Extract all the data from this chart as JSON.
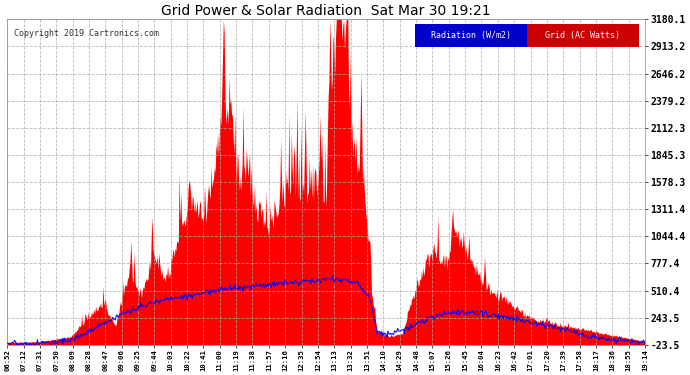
{
  "title": "Grid Power & Solar Radiation  Sat Mar 30 19:21",
  "copyright": "Copyright 2019 Cartronics.com",
  "legend": [
    {
      "label": "Radiation (W/m2)",
      "facecolor": "#0000cc",
      "textcolor": "#ffffff"
    },
    {
      "label": "Grid (AC Watts)",
      "facecolor": "#cc0000",
      "textcolor": "#ffffff"
    }
  ],
  "yticks": [
    -23.5,
    243.5,
    510.4,
    777.4,
    1044.4,
    1311.4,
    1578.3,
    1845.3,
    2112.3,
    2379.2,
    2646.2,
    2913.2,
    3180.1
  ],
  "ymin": -23.5,
  "ymax": 3180.1,
  "bg_color": "#ffffff",
  "plot_bg_color": "#ffffff",
  "title_color": "#000000",
  "tick_color": "#000000",
  "grid_color": "#aaaaaa",
  "xtick_labels": [
    "06:52",
    "07:12",
    "07:31",
    "07:50",
    "08:09",
    "08:28",
    "08:47",
    "09:06",
    "09:25",
    "09:44",
    "10:03",
    "10:22",
    "10:41",
    "11:00",
    "11:19",
    "11:38",
    "11:57",
    "12:16",
    "12:35",
    "12:54",
    "13:13",
    "13:32",
    "13:51",
    "14:10",
    "14:29",
    "14:48",
    "15:07",
    "15:26",
    "15:45",
    "16:04",
    "16:23",
    "16:42",
    "17:01",
    "17:20",
    "17:39",
    "17:58",
    "18:17",
    "18:36",
    "18:55",
    "19:14"
  ],
  "n_points": 780
}
